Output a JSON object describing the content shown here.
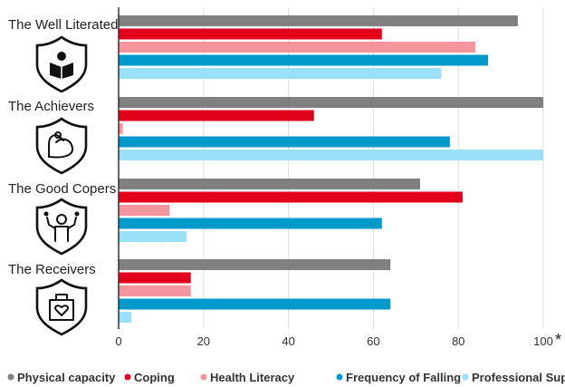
{
  "chart_data": {
    "type": "bar",
    "orientation": "horizontal",
    "categories": [
      "The Well Literated",
      "The Achievers",
      "The Good Copers",
      "The Receivers"
    ],
    "series": [
      {
        "name": "Physical capacity",
        "color": "#808080",
        "values": [
          94,
          100,
          71,
          64
        ]
      },
      {
        "name": "Coping",
        "color": "#e2001a",
        "values": [
          62,
          46,
          81,
          17
        ]
      },
      {
        "name": "Health Literacy",
        "color": "#f4949c",
        "values": [
          84,
          1,
          12,
          17
        ]
      },
      {
        "name": "Frequency of Falling",
        "color": "#0099cc",
        "values": [
          87,
          78,
          62,
          64
        ]
      },
      {
        "name": "Professional Support",
        "color": "#99e0f8",
        "values": [
          76,
          100,
          16,
          3
        ]
      }
    ],
    "xlim": [
      0,
      100
    ],
    "xticks": [
      "0",
      "20",
      "40",
      "60",
      "80",
      "100"
    ],
    "axis_note": "*",
    "grid": true,
    "legend_position": "bottom",
    "icons": [
      "reader-icon",
      "flexed-arm-icon",
      "juggler-icon",
      "heart-box-icon"
    ]
  }
}
